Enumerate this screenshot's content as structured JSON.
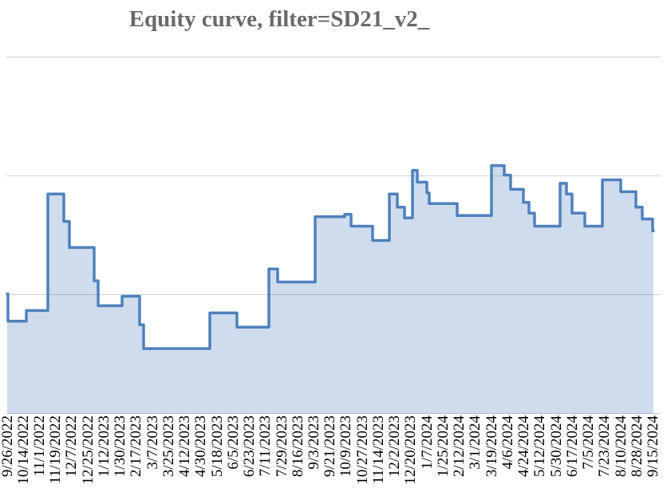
{
  "title": "Equity curve, filter=SD21_v2_",
  "colors": {
    "line": "#4f81bd",
    "area_fill": "rgba(79,129,189,0.28)",
    "gridline": "#d0d0d0",
    "title_text": "#696969",
    "axis_label_text": "#000000"
  },
  "chart_data": {
    "type": "area",
    "subtype": "step",
    "title": "Equity curve, filter=SD21_v2_",
    "xlabel": "",
    "ylabel": "",
    "legend": "none",
    "grid": "horizontal",
    "y_axis": {
      "labels_visible": false,
      "ylim": [
        0,
        3
      ],
      "gridline_interval": 1
    },
    "categories": [
      "9/26/2022",
      "10/14/2022",
      "11/1/2022",
      "11/19/2022",
      "12/7/2022",
      "12/25/2022",
      "1/12/2023",
      "1/30/2023",
      "2/17/2023",
      "3/7/2023",
      "3/25/2023",
      "4/12/2023",
      "4/30/2023",
      "5/18/2023",
      "6/5/2023",
      "6/23/2023",
      "7/11/2023",
      "7/29/2023",
      "8/16/2023",
      "9/3/2023",
      "9/21/2023",
      "10/9/2023",
      "10/27/2023",
      "11/14/2023",
      "12/2/2023",
      "12/20/2023",
      "1/7/2024",
      "1/25/2024",
      "2/12/2024",
      "3/1/2024",
      "3/19/2024",
      "4/6/2024",
      "4/24/2024",
      "5/12/2024",
      "5/30/2024",
      "6/17/2024",
      "7/5/2024",
      "7/23/2024",
      "8/10/2024",
      "8/28/2024",
      "9/15/2024"
    ],
    "series": [
      {
        "name": "equity",
        "note": "steps are [x_start, x_end, value] with x in 0-810 plot units spanning the 41 date categories, value in y-gridline units (1 unit = 1 gridline interval)",
        "steps": [
          [
            0,
            1,
            1.01
          ],
          [
            1,
            24,
            0.78
          ],
          [
            24,
            51,
            0.87
          ],
          [
            51,
            71,
            1.85
          ],
          [
            71,
            78,
            1.62
          ],
          [
            78,
            109,
            1.4
          ],
          [
            109,
            114,
            1.12
          ],
          [
            114,
            144,
            0.91
          ],
          [
            144,
            166,
            0.99
          ],
          [
            166,
            171,
            0.75
          ],
          [
            171,
            254,
            0.55
          ],
          [
            254,
            288,
            0.85
          ],
          [
            288,
            328,
            0.73
          ],
          [
            328,
            339,
            1.22
          ],
          [
            339,
            386,
            1.11
          ],
          [
            386,
            423,
            1.66
          ],
          [
            423,
            431,
            1.68
          ],
          [
            431,
            458,
            1.58
          ],
          [
            458,
            479,
            1.46
          ],
          [
            479,
            489,
            1.85
          ],
          [
            489,
            498,
            1.74
          ],
          [
            498,
            508,
            1.65
          ],
          [
            508,
            514,
            2.05
          ],
          [
            514,
            526,
            1.95
          ],
          [
            526,
            529,
            1.86
          ],
          [
            529,
            564,
            1.77
          ],
          [
            564,
            607,
            1.67
          ],
          [
            607,
            623,
            2.09
          ],
          [
            623,
            631,
            2.01
          ],
          [
            631,
            647,
            1.89
          ],
          [
            647,
            654,
            1.78
          ],
          [
            654,
            661,
            1.69
          ],
          [
            661,
            693,
            1.58
          ],
          [
            693,
            701,
            1.94
          ],
          [
            701,
            708,
            1.85
          ],
          [
            708,
            724,
            1.69
          ],
          [
            724,
            746,
            1.58
          ],
          [
            746,
            769,
            1.97
          ],
          [
            769,
            788,
            1.87
          ],
          [
            788,
            796,
            1.74
          ],
          [
            796,
            809,
            1.64
          ],
          [
            809,
            810,
            1.54
          ]
        ]
      }
    ]
  }
}
